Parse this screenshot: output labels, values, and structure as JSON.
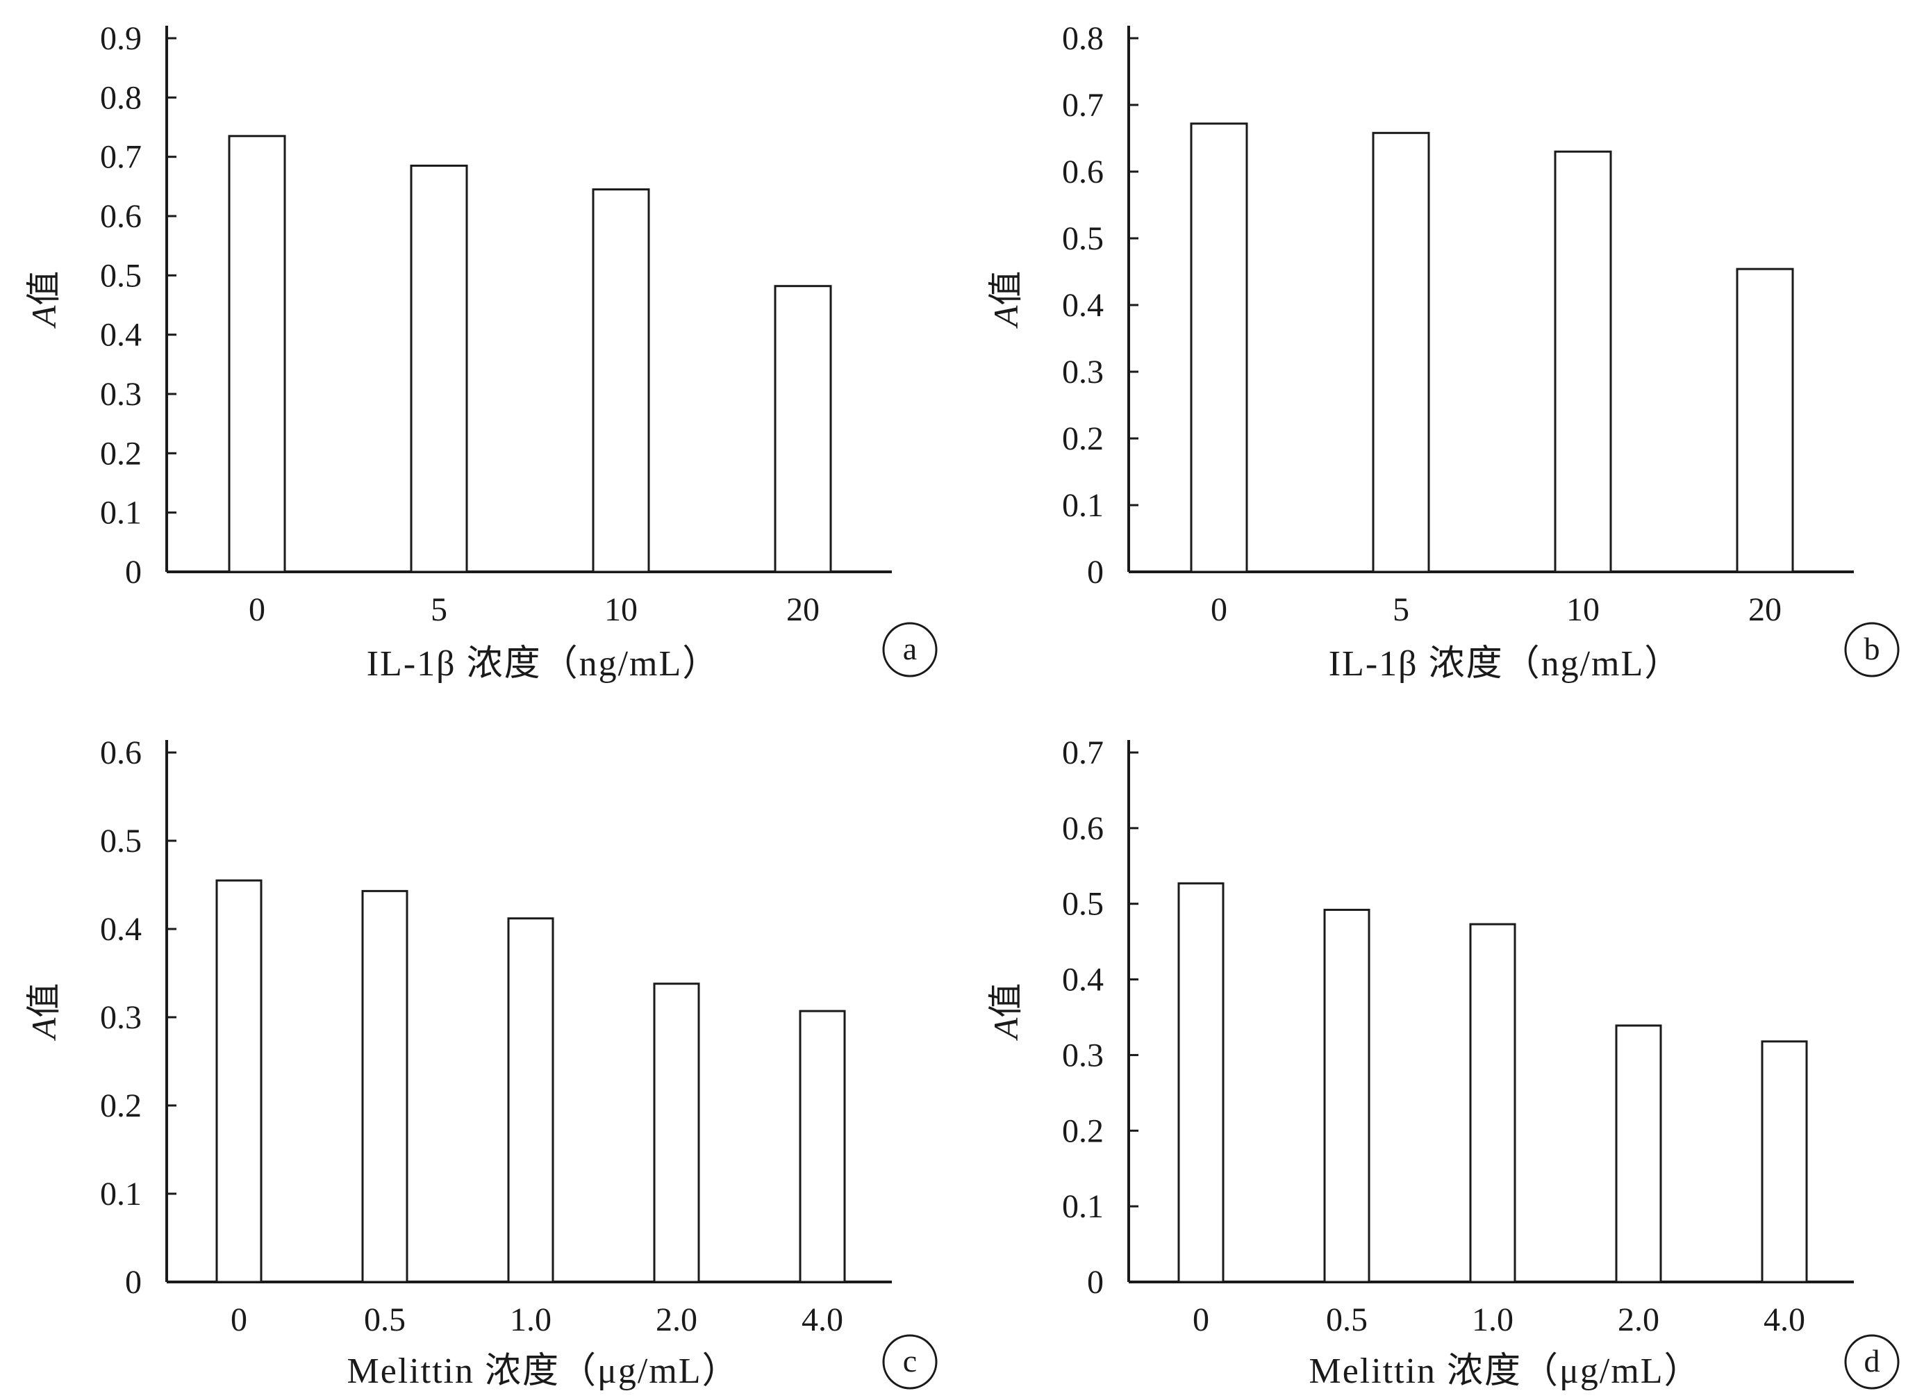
{
  "chart_data": [
    {
      "type": "bar",
      "panel_label": "a",
      "ylabel": "A值",
      "xlabel": "IL-1β 浓度（ng/mL）",
      "categories": [
        "0",
        "5",
        "10",
        "20"
      ],
      "values": [
        0.735,
        0.685,
        0.645,
        0.482
      ],
      "ylim": [
        0,
        0.9
      ],
      "yticks": [
        "0",
        "0.1",
        "0.2",
        "0.3",
        "0.4",
        "0.5",
        "0.6",
        "0.7",
        "0.8",
        "0.9"
      ],
      "grid": false
    },
    {
      "type": "bar",
      "panel_label": "b",
      "ylabel": "A值",
      "xlabel": "IL-1β 浓度（ng/mL）",
      "categories": [
        "0",
        "5",
        "10",
        "20"
      ],
      "values": [
        0.672,
        0.658,
        0.63,
        0.454
      ],
      "ylim": [
        0,
        0.8
      ],
      "yticks": [
        "0",
        "0.1",
        "0.2",
        "0.3",
        "0.4",
        "0.5",
        "0.6",
        "0.7",
        "0.8"
      ],
      "grid": false
    },
    {
      "type": "bar",
      "panel_label": "c",
      "ylabel": "A值",
      "xlabel": "Melittin 浓度（μg/mL）",
      "categories": [
        "0",
        "0.5",
        "1.0",
        "2.0",
        "4.0"
      ],
      "values": [
        0.455,
        0.443,
        0.412,
        0.338,
        0.307
      ],
      "ylim": [
        0,
        0.6
      ],
      "yticks": [
        "0",
        "0.1",
        "0.2",
        "0.3",
        "0.4",
        "0.5",
        "0.6"
      ],
      "grid": false
    },
    {
      "type": "bar",
      "panel_label": "d",
      "ylabel": "A值",
      "xlabel": "Melittin 浓度（μg/mL）",
      "categories": [
        "0",
        "0.5",
        "1.0",
        "2.0",
        "4.0"
      ],
      "values": [
        0.527,
        0.492,
        0.473,
        0.339,
        0.318
      ],
      "ylim": [
        0,
        0.7
      ],
      "yticks": [
        "0",
        "0.1",
        "0.2",
        "0.3",
        "0.4",
        "0.5",
        "0.6",
        "0.7"
      ],
      "grid": false
    }
  ]
}
